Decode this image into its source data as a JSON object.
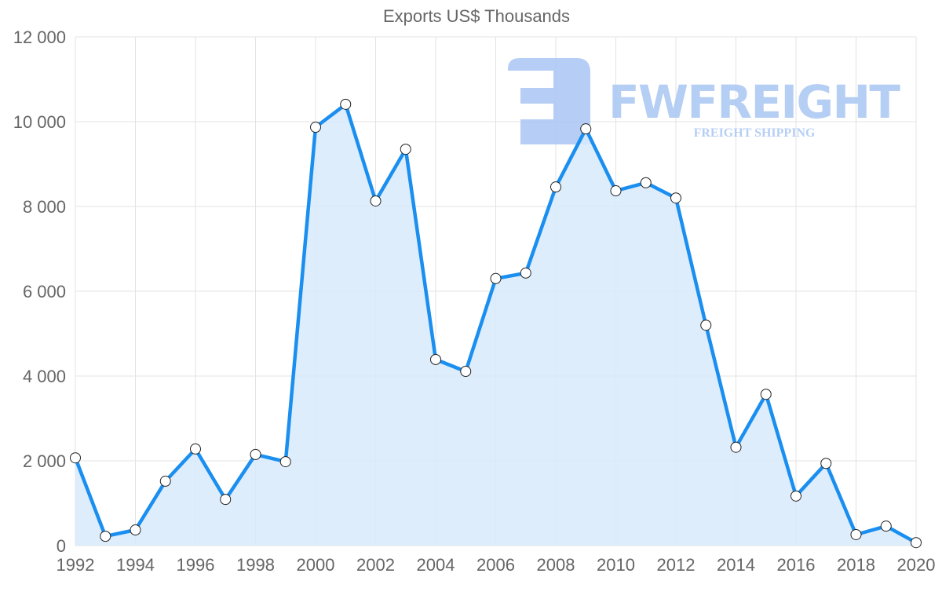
{
  "chart_data": {
    "type": "area",
    "title": "Exports US$ Thousands",
    "xlabel": "",
    "ylabel": "",
    "x": [
      1992,
      1993,
      1994,
      1995,
      1996,
      1997,
      1998,
      1999,
      2000,
      2001,
      2002,
      2003,
      2004,
      2005,
      2006,
      2007,
      2008,
      2009,
      2010,
      2011,
      2012,
      2013,
      2014,
      2015,
      2016,
      2017,
      2018,
      2019,
      2020
    ],
    "series": [
      {
        "name": "Exports US$ Thousands",
        "values": [
          2070,
          220,
          370,
          1520,
          2280,
          1090,
          2150,
          1980,
          9870,
          10410,
          8130,
          9350,
          4390,
          4110,
          6300,
          6430,
          8460,
          9830,
          8370,
          8560,
          8200,
          5200,
          2320,
          3570,
          1170,
          1940,
          260,
          460,
          70
        ]
      }
    ],
    "ylim": [
      0,
      12000
    ],
    "xlim": [
      1992,
      2020
    ],
    "y_ticks": [
      "0",
      "2 000",
      "4 000",
      "6 000",
      "8 000",
      "10 000",
      "12 000"
    ],
    "x_ticks": [
      "1992",
      "1994",
      "1996",
      "1998",
      "2000",
      "2002",
      "2004",
      "2006",
      "2008",
      "2010",
      "2012",
      "2014",
      "2016",
      "2018",
      "2020"
    ],
    "grid": true,
    "legend": "none",
    "colors": {
      "line": "#1a8ff0",
      "fill": "#d8eafc",
      "grid": "#e3e3e3",
      "text": "#666666",
      "watermark": "#a9c6f3"
    },
    "watermark": {
      "brand": "FWFREIGHT",
      "tagline": "FREIGHT SHIPPING"
    }
  }
}
